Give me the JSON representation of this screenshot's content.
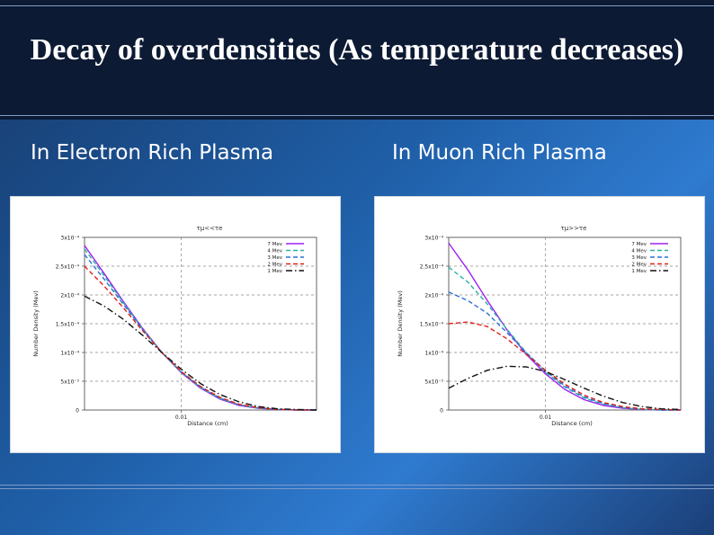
{
  "slide": {
    "title": "Decay of overdensities (As temperature decreases)",
    "left_heading": "In Electron Rich Plasma",
    "right_heading": "In Muon Rich Plasma"
  },
  "colors": {
    "7 Mev": "#a020f0",
    "4 Mev": "#2bb3a2",
    "3 Mev": "#2c6fd6",
    "2 Mev": "#e0201a",
    "1 Mev": "#111111"
  },
  "chart_data": [
    {
      "type": "line",
      "title": "τμ<<τe",
      "xlabel": "Distance (cm)",
      "ylabel": "Number Density (Mev)",
      "xlim": [
        0,
        0.024
      ],
      "ylim": [
        0,
        0.0003
      ],
      "yticks": [
        "0",
        "5x10⁻⁵",
        "1x10⁻⁴",
        "1.5x10⁻⁴",
        "2x10⁻⁴",
        "2.5x10⁻⁴",
        "3x10⁻⁴"
      ],
      "xticks": [
        "0.01"
      ],
      "legend_position": "top-right",
      "grid": "dashed at x = 0.01 and y ticks",
      "x": [
        0,
        0.002,
        0.004,
        0.006,
        0.008,
        0.01,
        0.012,
        0.014,
        0.016,
        0.018,
        0.02,
        0.022,
        0.024
      ],
      "series": [
        {
          "name": "7 Mev",
          "style": "solid",
          "values": [
            0.000286,
            0.000238,
            0.000189,
            0.000142,
            0.0001,
            6.5e-05,
            3.8e-05,
            1.9e-05,
            8e-06,
            3e-06,
            1e-06,
            0.0,
            0.0
          ]
        },
        {
          "name": "4 Mev",
          "style": "dashed",
          "values": [
            0.00028,
            0.000234,
            0.000187,
            0.000141,
            0.0001,
            6.6e-05,
            3.9e-05,
            2e-05,
            9e-06,
            3e-06,
            1e-06,
            0.0,
            0.0
          ]
        },
        {
          "name": "3 Mev",
          "style": "dashed",
          "values": [
            0.00027,
            0.000228,
            0.000184,
            0.00014,
            0.0001,
            6.6e-05,
            4e-05,
            2.1e-05,
            9e-06,
            4e-06,
            1e-06,
            0.0,
            0.0
          ]
        },
        {
          "name": "2 Mev",
          "style": "dashed",
          "values": [
            0.00025,
            0.000216,
            0.000178,
            0.000138,
            0.0001,
            6.7e-05,
            4.1e-05,
            2.2e-05,
            1e-05,
            4e-06,
            1e-06,
            0.0,
            0.0
          ]
        },
        {
          "name": "1 Mev",
          "style": "dash-dot",
          "values": [
            0.000198,
            0.000181,
            0.000158,
            0.00013,
            0.0001,
            7.1e-05,
            4.6e-05,
            2.7e-05,
            1.4e-05,
            6e-06,
            2e-06,
            1e-06,
            0.0
          ]
        }
      ]
    },
    {
      "type": "line",
      "title": "τμ>>τe",
      "xlabel": "Distance (cm)",
      "ylabel": "Number Density (Mev)",
      "xlim": [
        0,
        0.024
      ],
      "ylim": [
        0,
        0.0003
      ],
      "yticks": [
        "0",
        "5x10⁻⁵",
        "1x10⁻⁴",
        "1.5x10⁻⁴",
        "2x10⁻⁴",
        "2.5x10⁻⁴",
        "3x10⁻⁴"
      ],
      "xticks": [
        "0.01"
      ],
      "legend_position": "top-right",
      "grid": "dashed at x = 0.01 and y ticks",
      "x": [
        0,
        0.002,
        0.004,
        0.006,
        0.008,
        0.01,
        0.012,
        0.014,
        0.016,
        0.018,
        0.02,
        0.022,
        0.024
      ],
      "series": [
        {
          "name": "7 Mev",
          "style": "solid",
          "values": [
            0.00029,
            0.000243,
            0.00019,
            0.00014,
            9.7e-05,
            6.3e-05,
            3.6e-05,
            1.8e-05,
            8e-06,
            3e-06,
            1e-06,
            0.0,
            0.0
          ]
        },
        {
          "name": "4 Mev",
          "style": "dashed",
          "values": [
            0.000248,
            0.000222,
            0.000184,
            0.000141,
            0.0001,
            6.6e-05,
            4e-05,
            2.1e-05,
            1e-05,
            4e-06,
            1e-06,
            0.0,
            0.0
          ]
        },
        {
          "name": "3 Mev",
          "style": "dashed",
          "values": [
            0.000205,
            0.00019,
            0.000168,
            0.000135,
            0.0001,
            6.8e-05,
            4.2e-05,
            2.3e-05,
            1.1e-05,
            5e-06,
            2e-06,
            0.0,
            0.0
          ]
        },
        {
          "name": "2 Mev",
          "style": "dashed",
          "values": [
            0.00015,
            0.000153,
            0.000145,
            0.000124,
            9.7e-05,
            6.9e-05,
            4.5e-05,
            2.6e-05,
            1.3e-05,
            6e-06,
            2e-06,
            1e-06,
            0.0
          ]
        },
        {
          "name": "1 Mev",
          "style": "dash-dot",
          "values": [
            3.8e-05,
            5.5e-05,
            6.9e-05,
            7.6e-05,
            7.5e-05,
            6.7e-05,
            5.3e-05,
            3.8e-05,
            2.4e-05,
            1.3e-05,
            6e-06,
            2e-06,
            1e-06
          ]
        }
      ]
    }
  ]
}
